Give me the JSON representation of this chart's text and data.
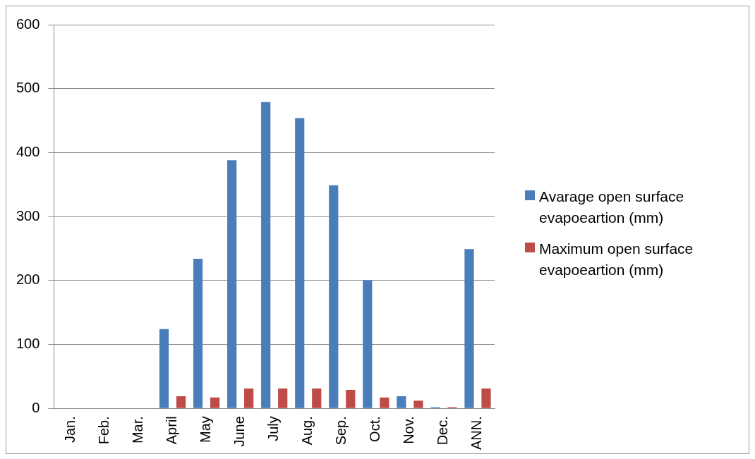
{
  "chart_data": {
    "type": "bar",
    "categories": [
      "Jan.",
      "Feb.",
      "Mar.",
      "April",
      "May",
      "June",
      "July",
      "Aug.",
      "Sep.",
      "Oct.",
      "Nov.",
      "Dec.",
      "ANN."
    ],
    "series": [
      {
        "name": "Avarage open surface evapoeartion (mm)",
        "color": "#4a7ebb",
        "values": [
          0,
          0,
          0,
          124,
          234,
          388,
          479,
          454,
          349,
          200,
          19,
          2,
          249
        ]
      },
      {
        "name": "Maximum open surface evapoeartion (mm)",
        "color": "#be4b48",
        "values": [
          0,
          0,
          0,
          19,
          17,
          31,
          31,
          31,
          29,
          17,
          12,
          2,
          31
        ]
      }
    ],
    "ylim": [
      0,
      600
    ],
    "yticks": [
      0,
      100,
      200,
      300,
      400,
      500,
      600
    ],
    "grid": "y",
    "legend": "right"
  }
}
